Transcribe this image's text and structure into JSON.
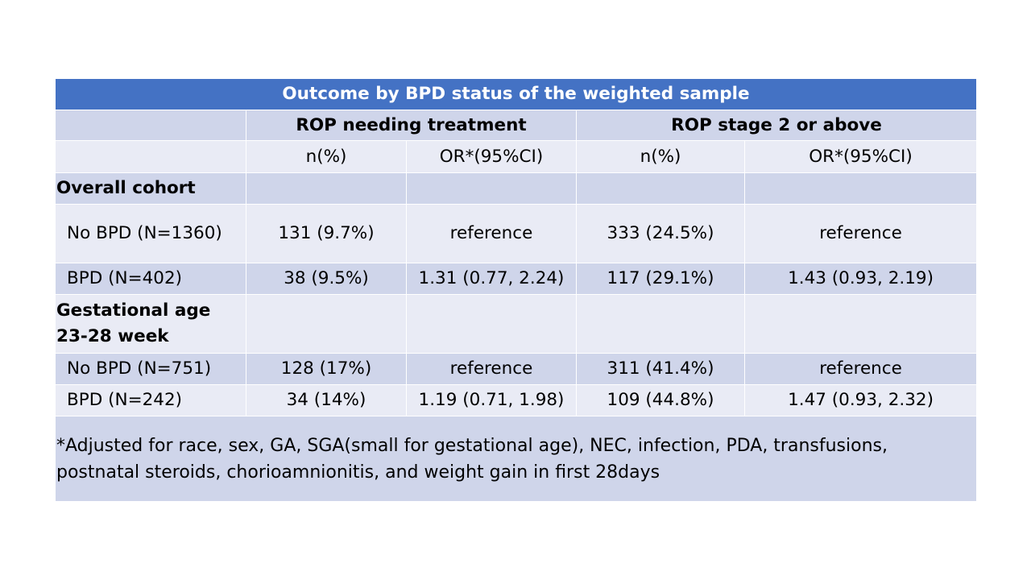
{
  "table": {
    "title": "Outcome by BPD status of the weighted sample",
    "group_headers": [
      "ROP needing treatment",
      "ROP stage 2 or above"
    ],
    "sub_headers": [
      "n(%)",
      "OR*(95%CI)",
      "n(%)",
      "OR*(95%CI)"
    ],
    "sections": [
      {
        "label": "Overall cohort",
        "rows": [
          {
            "label": "No BPD (N=1360)",
            "cells": [
              "131 (9.7%)",
              "reference",
              "333 (24.5%)",
              "reference"
            ]
          },
          {
            "label": "BPD (N=402)",
            "cells": [
              "38 (9.5%)",
              "1.31 (0.77, 2.24)",
              "117 (29.1%)",
              "1.43 (0.93, 2.19)"
            ]
          }
        ]
      },
      {
        "label": "Gestational age 23-28 week",
        "rows": [
          {
            "label": "No BPD (N=751)",
            "cells": [
              "128 (17%)",
              "reference",
              "311 (41.4%)",
              "reference"
            ]
          },
          {
            "label": "BPD (N=242)",
            "cells": [
              "34 (14%)",
              "1.19 (0.71, 1.98)",
              "109 (44.8%)",
              "1.47 (0.93, 2.32)"
            ]
          }
        ]
      }
    ],
    "footnote": "*Adjusted for race, sex, GA, SGA(small for gestational age), NEC, infection, PDA, transfusions, postnatal steroids, chorioamnionitis, and weight gain in first 28days"
  },
  "colors": {
    "title_band": "#4472c4",
    "dark_band": "#cfd5ea",
    "light_band": "#e9ebf5"
  }
}
